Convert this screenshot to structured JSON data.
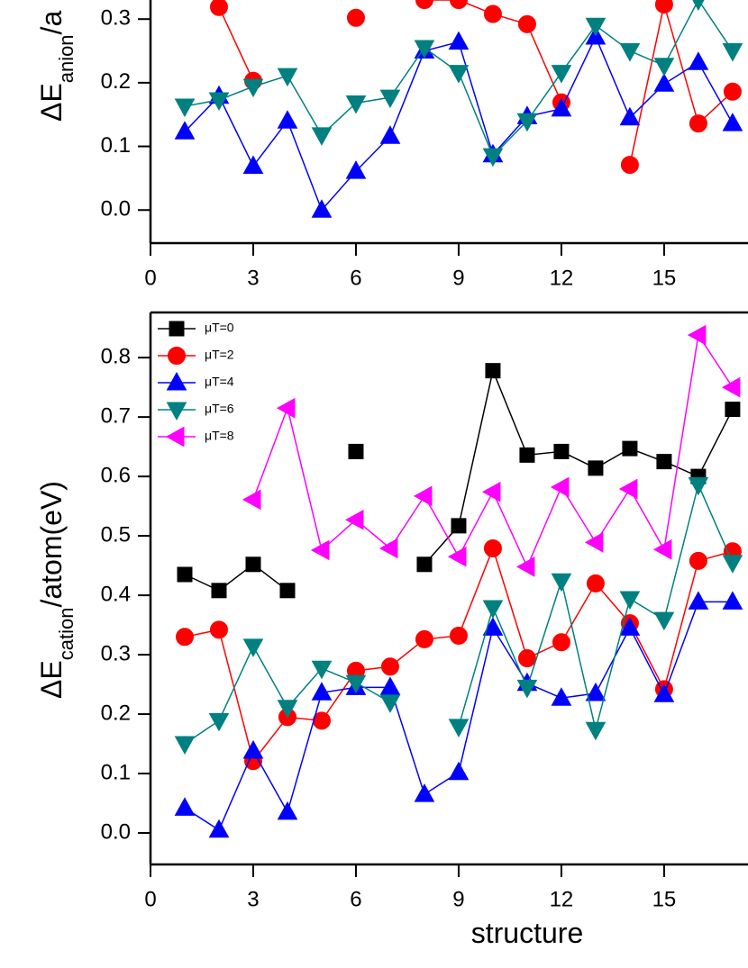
{
  "chart_data": [
    {
      "type": "line",
      "y_label": [
        "ΔE",
        "anion",
        "/a"
      ],
      "x": [
        1,
        2,
        3,
        4,
        5,
        6,
        7,
        8,
        9,
        10,
        11,
        12,
        13,
        14,
        15,
        16,
        17
      ],
      "xlim": [
        0,
        17.45
      ],
      "xticks": [
        0,
        3,
        6,
        9,
        12,
        15
      ],
      "ylim": [
        -0.052,
        0.33
      ],
      "yticks": [
        {
          "value": 0,
          "label": "0.0"
        },
        0.1,
        0.2,
        0.3
      ],
      "series": [
        {
          "color": "#ff0000",
          "marker": "circle",
          "values": [
            null,
            0.319,
            0.203,
            null,
            null,
            0.302,
            null,
            0.33,
            0.33,
            0.308,
            0.292,
            0.169,
            null,
            0.071,
            0.323,
            0.136,
            0.186
          ]
        },
        {
          "color": "#0000ff",
          "marker": "triangle-up",
          "values": [
            0.123,
            0.179,
            0.069,
            0.14,
            0.0,
            0.061,
            0.116,
            0.25,
            0.264,
            0.087,
            0.147,
            0.159,
            0.272,
            0.145,
            0.198,
            0.232,
            0.136
          ]
        },
        {
          "color": "#008080",
          "marker": "triangle-down",
          "values": [
            0.163,
            0.173,
            0.194,
            0.211,
            0.118,
            0.168,
            0.177,
            0.255,
            0.216,
            0.085,
            0.14,
            0.216,
            0.29,
            0.25,
            0.227,
            0.33,
            0.25
          ]
        }
      ]
    },
    {
      "type": "line",
      "x_label": "structure",
      "y_label": [
        "ΔE",
        "cation",
        "/atom(eV)"
      ],
      "x": [
        1,
        2,
        3,
        4,
        5,
        6,
        7,
        8,
        9,
        10,
        11,
        12,
        13,
        14,
        15,
        16,
        17
      ],
      "xlim": [
        0,
        17.45
      ],
      "xticks": [
        0,
        3,
        6,
        9,
        12,
        15
      ],
      "ylim": [
        -0.053,
        0.876
      ],
      "yticks": [
        {
          "value": 0,
          "label": "0.0"
        },
        0.1,
        0.2,
        0.3,
        0.4,
        0.5,
        0.6,
        0.7,
        0.8
      ],
      "legend": "upper left",
      "series": [
        {
          "name": "μT=0",
          "color": "#000000",
          "marker": "square",
          "values": [
            0.435,
            0.408,
            0.452,
            0.408,
            null,
            0.642,
            null,
            0.452,
            0.517,
            0.778,
            0.636,
            0.642,
            0.614,
            0.647,
            0.625,
            0.6,
            0.713
          ]
        },
        {
          "name": "μT=2",
          "color": "#ff0000",
          "marker": "circle",
          "values": [
            0.33,
            0.342,
            0.121,
            0.195,
            0.189,
            0.273,
            0.28,
            0.326,
            0.332,
            0.479,
            0.294,
            0.321,
            0.42,
            0.353,
            0.242,
            0.458,
            0.474
          ]
        },
        {
          "name": "μT=4",
          "color": "#0000ff",
          "marker": "triangle-up",
          "values": [
            0.042,
            0.005,
            0.138,
            0.035,
            0.236,
            0.245,
            0.245,
            0.065,
            0.102,
            0.345,
            0.252,
            0.227,
            0.235,
            0.345,
            0.233,
            0.389,
            0.389
          ]
        },
        {
          "name": "μT=6",
          "color": "#008080",
          "marker": "triangle-down",
          "values": [
            0.15,
            0.189,
            0.314,
            0.211,
            0.277,
            0.253,
            0.22,
            null,
            0.179,
            0.379,
            0.245,
            0.424,
            0.174,
            0.394,
            0.359,
            0.586,
            0.455
          ]
        },
        {
          "name": "μT=8",
          "color": "#ff00ff",
          "marker": "triangle-left",
          "values": [
            null,
            null,
            0.561,
            0.715,
            0.476,
            0.527,
            0.479,
            0.567,
            0.465,
            0.574,
            0.448,
            0.582,
            0.489,
            0.579,
            0.477,
            0.838,
            0.75
          ]
        }
      ]
    }
  ]
}
